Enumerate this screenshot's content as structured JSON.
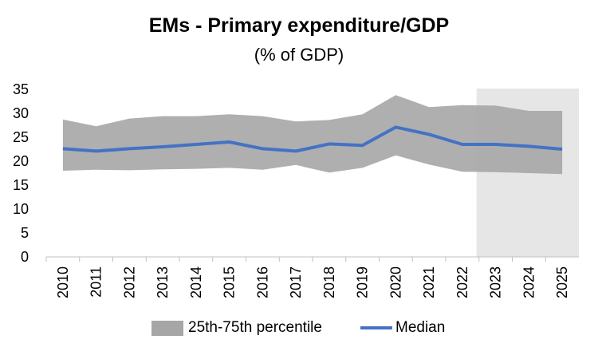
{
  "chart_data": {
    "type": "area",
    "title": "EMs - Primary expenditure/GDP",
    "subtitle": "(% of GDP)",
    "categories": [
      "2010",
      "2011",
      "2012",
      "2013",
      "2014",
      "2015",
      "2016",
      "2017",
      "2018",
      "2019",
      "2020",
      "2021",
      "2022",
      "2023",
      "2024",
      "2025"
    ],
    "yticks": [
      "0",
      "5",
      "10",
      "15",
      "20",
      "25",
      "30",
      "35"
    ],
    "ylim": [
      0,
      35
    ],
    "projection_start": "2023",
    "series": [
      {
        "name": "25th-75th percentile",
        "kind": "band",
        "color": "#a6a6a6",
        "lower": [
          18.0,
          18.2,
          18.1,
          18.3,
          18.4,
          18.6,
          18.2,
          19.2,
          17.6,
          18.6,
          21.2,
          19.3,
          17.8,
          17.7,
          17.5,
          17.3
        ],
        "upper": [
          28.7,
          27.3,
          28.9,
          29.4,
          29.4,
          29.8,
          29.4,
          28.3,
          28.6,
          29.8,
          33.8,
          31.3,
          31.7,
          31.6,
          30.5,
          30.5
        ]
      },
      {
        "name": "Median",
        "kind": "line",
        "color": "#4472c4",
        "values": [
          22.6,
          22.1,
          22.6,
          23.0,
          23.5,
          24.0,
          22.6,
          22.1,
          23.6,
          23.3,
          27.1,
          25.6,
          23.5,
          23.5,
          23.1,
          22.5
        ]
      }
    ],
    "legend_position": "bottom",
    "grid": false
  }
}
